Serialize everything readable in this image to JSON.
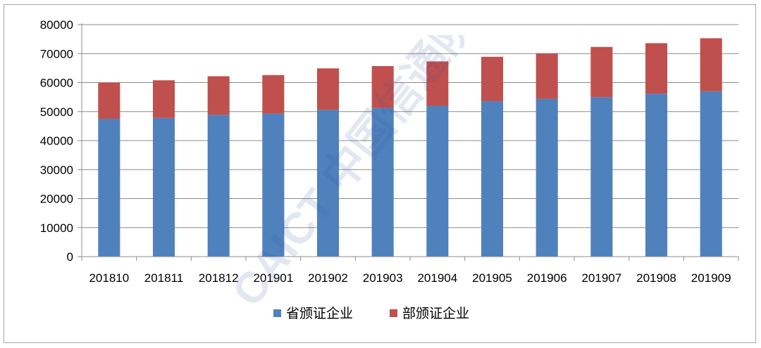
{
  "chart_data": {
    "type": "bar",
    "stacked": true,
    "categories": [
      "201810",
      "201811",
      "201812",
      "201901",
      "201902",
      "201903",
      "201904",
      "201905",
      "201906",
      "201907",
      "201908",
      "201909"
    ],
    "series": [
      {
        "name": "省颁证企业",
        "color": "#4f81bd",
        "values": [
          47500,
          47800,
          48900,
          49300,
          50600,
          51200,
          52000,
          53600,
          54400,
          55000,
          56200,
          57000
        ]
      },
      {
        "name": "部颁证企业",
        "color": "#c0504d",
        "values": [
          12500,
          13000,
          13300,
          13300,
          14300,
          14500,
          15300,
          15300,
          15700,
          17300,
          17400,
          18300
        ]
      }
    ],
    "y_ticks": [
      "0",
      "10000",
      "20000",
      "30000",
      "40000",
      "50000",
      "60000",
      "70000",
      "80000"
    ],
    "ylim": [
      0,
      80000
    ],
    "grid": true,
    "legend_position": "bottom"
  },
  "watermark": {
    "text": "CAICT 中国信通院"
  }
}
